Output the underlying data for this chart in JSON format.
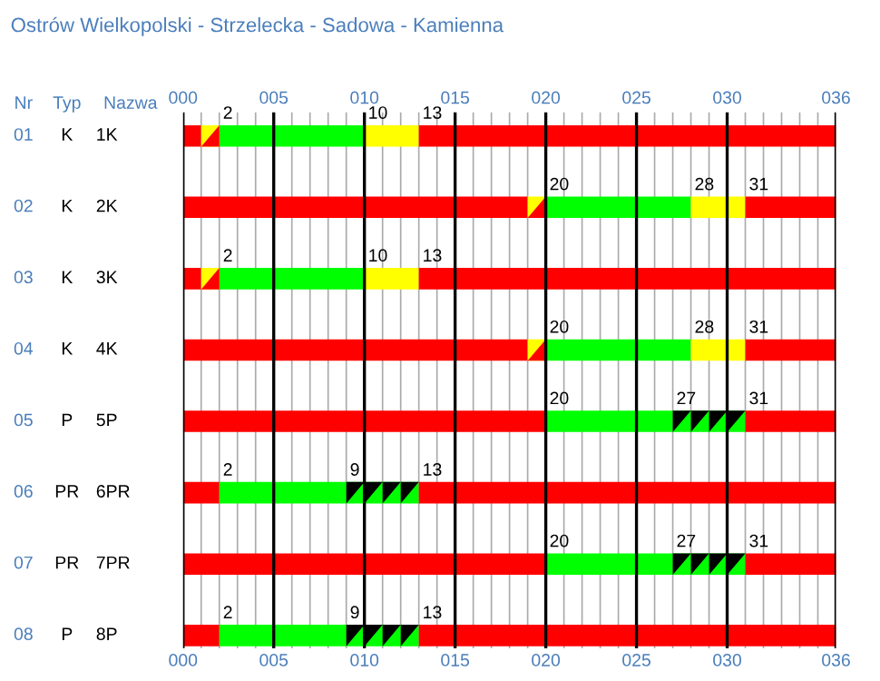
{
  "chart_data": {
    "type": "bar",
    "orientation": "horizontal",
    "stacked": true,
    "title": "Ostrów Wielkopolski - Strzelecka - Sadowa - Kamienna",
    "categories": [
      "1K",
      "2K",
      "3K",
      "4K",
      "5P",
      "6PR",
      "7PR",
      "8P"
    ],
    "series": [
      {
        "color": "#ff0000",
        "values": [
          1,
          19,
          1,
          19,
          20,
          2,
          20,
          2
        ]
      },
      {
        "color": "#ffff00",
        "values": [
          1,
          1,
          1,
          1,
          null,
          null,
          null,
          null
        ]
      },
      {
        "color": "#00ff00",
        "values": [
          8,
          8,
          8,
          8,
          7,
          7,
          7,
          7
        ]
      },
      {
        "color": "#ffff00",
        "values": [
          3,
          3,
          3,
          3,
          null,
          null,
          null,
          null
        ]
      },
      {
        "color": "#00ff00",
        "values": [
          null,
          null,
          null,
          null,
          4,
          4,
          4,
          4
        ]
      },
      {
        "color": "#ff0000",
        "values": [
          23,
          5,
          23,
          5,
          5,
          23,
          5,
          23
        ]
      }
    ],
    "xlim": [
      0,
      36
    ],
    "xticks": [
      {
        "value": 0,
        "label": "000"
      },
      {
        "value": 1,
        "label": null
      },
      {
        "value": 2,
        "label": null
      },
      {
        "value": 3,
        "label": null
      },
      {
        "value": 4,
        "label": null
      },
      {
        "value": 5,
        "label": "005"
      },
      {
        "value": 6,
        "label": null
      },
      {
        "value": 7,
        "label": null
      },
      {
        "value": 8,
        "label": null
      },
      {
        "value": 9,
        "label": null
      },
      {
        "value": 10,
        "label": "010"
      },
      {
        "value": 11,
        "label": null
      },
      {
        "value": 12,
        "label": null
      },
      {
        "value": 13,
        "label": null
      },
      {
        "value": 14,
        "label": null
      },
      {
        "value": 15,
        "label": "015"
      },
      {
        "value": 16,
        "label": null
      },
      {
        "value": 17,
        "label": null
      },
      {
        "value": 18,
        "label": null
      },
      {
        "value": 19,
        "label": null
      },
      {
        "value": 20,
        "label": "020"
      },
      {
        "value": 21,
        "label": null
      },
      {
        "value": 22,
        "label": null
      },
      {
        "value": 23,
        "label": null
      },
      {
        "value": 24,
        "label": null
      },
      {
        "value": 25,
        "label": "025"
      },
      {
        "value": 26,
        "label": null
      },
      {
        "value": 27,
        "label": null
      },
      {
        "value": 28,
        "label": null
      },
      {
        "value": 29,
        "label": null
      },
      {
        "value": 30,
        "label": "030"
      },
      {
        "value": 31,
        "label": null
      },
      {
        "value": 32,
        "label": null
      },
      {
        "value": 33,
        "label": null
      },
      {
        "value": 34,
        "label": null
      },
      {
        "value": 35,
        "label": null
      },
      {
        "value": 36,
        "label": "036"
      }
    ],
    "x2lim": [
      0,
      36
    ],
    "x2ticks": [
      {
        "value": 0,
        "label": "000"
      },
      {
        "value": 5,
        "label": "005"
      },
      {
        "value": 10,
        "label": "010"
      },
      {
        "value": 15,
        "label": "015"
      },
      {
        "value": 20,
        "label": "020"
      },
      {
        "value": 25,
        "label": "025"
      },
      {
        "value": 30,
        "label": "030"
      },
      {
        "value": 36,
        "label": "036"
      }
    ],
    "grid": "x",
    "annotations": [
      "Nr",
      "Typ",
      "Nazwa",
      "01",
      "K",
      "02",
      "K",
      "03",
      "K",
      "04",
      "K",
      "05",
      "P",
      "06",
      "PR",
      "07",
      "PR",
      "08",
      "P",
      {
        "text": "2",
        "x": 2,
        "y": "1K"
      },
      {
        "text": "10",
        "x": 10,
        "y": "1K"
      },
      {
        "text": "13",
        "x": 13,
        "y": "1K"
      },
      {
        "text": "20",
        "x": 20,
        "y": "2K"
      },
      {
        "text": "28",
        "x": 28,
        "y": "2K"
      },
      {
        "text": "31",
        "x": 31,
        "y": "2K"
      },
      {
        "text": "2",
        "x": 2,
        "y": "3K"
      },
      {
        "text": "10",
        "x": 10,
        "y": "3K"
      },
      {
        "text": "13",
        "x": 13,
        "y": "3K"
      },
      {
        "text": "20",
        "x": 20,
        "y": "4K"
      },
      {
        "text": "28",
        "x": 28,
        "y": "4K"
      },
      {
        "text": "31",
        "x": 31,
        "y": "4K"
      },
      {
        "text": "20",
        "x": 20,
        "y": "5P"
      },
      {
        "text": "27",
        "x": 27,
        "y": "5P"
      },
      {
        "text": "31",
        "x": 31,
        "y": "5P"
      },
      {
        "text": "2",
        "x": 2,
        "y": "6PR"
      },
      {
        "text": "9",
        "x": 9,
        "y": "6PR"
      },
      {
        "text": "13",
        "x": 13,
        "y": "6PR"
      },
      {
        "text": "20",
        "x": 20,
        "y": "7PR"
      },
      {
        "text": "27",
        "x": 27,
        "y": "7PR"
      },
      {
        "text": "31",
        "x": 31,
        "y": "7PR"
      },
      {
        "text": "2",
        "x": 2,
        "y": "8P"
      },
      {
        "text": "9",
        "x": 9,
        "y": "8P"
      },
      {
        "text": "13",
        "x": 13,
        "y": "8P"
      }
    ]
  }
}
